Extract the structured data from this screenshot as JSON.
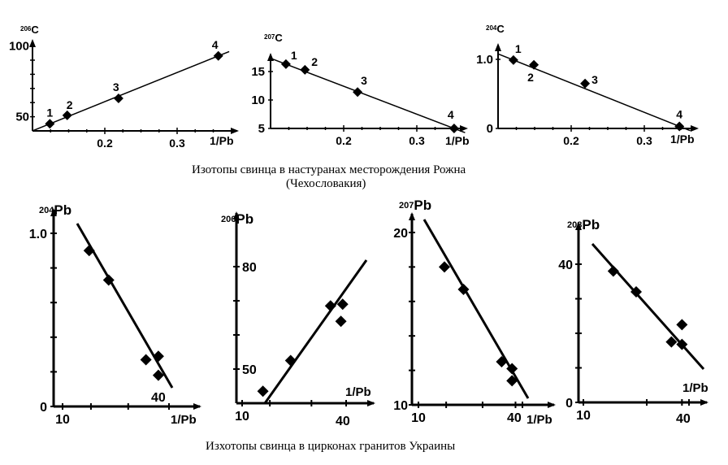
{
  "captions": {
    "top_line1": "Изотопы  свинца в настуранах месторождения Рожна",
    "top_line2": "(Чехословакия)",
    "bottom": "Изхотопы свинца в цирконах гранитов Украины"
  },
  "chart_data": [
    {
      "type": "line",
      "title": "",
      "ylabel": "206C",
      "xlabel": "1/Pb",
      "x_ticks": [
        0.2,
        0.3
      ],
      "y_ticks": [
        50,
        100
      ],
      "xlim": [
        0.1,
        0.38
      ],
      "ylim": [
        40,
        100
      ],
      "series": [
        {
          "name": "206C",
          "x": [
            0.124,
            0.148,
            0.219,
            0.357
          ],
          "y": [
            45,
            51,
            63,
            93
          ],
          "labels": [
            "1",
            "2",
            "3",
            "4"
          ]
        }
      ],
      "fit_line": true
    },
    {
      "type": "line",
      "title": "",
      "ylabel": "207C",
      "xlabel": "1/Pb",
      "x_ticks": [
        0.2,
        0.3
      ],
      "y_ticks": [
        5,
        10,
        15
      ],
      "xlim": [
        0.1,
        0.36
      ],
      "ylim": [
        5,
        18
      ],
      "series": [
        {
          "name": "207C",
          "x": [
            0.121,
            0.147,
            0.219,
            0.351
          ],
          "y": [
            16.3,
            15.3,
            11.4,
            5.0
          ],
          "labels": [
            "1",
            "2",
            "3",
            "4"
          ]
        }
      ],
      "fit_line": true
    },
    {
      "type": "line",
      "title": "",
      "ylabel": "204C",
      "xlabel": "1/Pb",
      "x_ticks": [
        0.2,
        0.3
      ],
      "y_ticks": [
        0,
        1.0
      ],
      "xlim": [
        0.1,
        0.36
      ],
      "ylim": [
        0,
        1.1
      ],
      "series": [
        {
          "name": "204C",
          "x": [
            0.121,
            0.149,
            0.219,
            0.348
          ],
          "y": [
            0.99,
            0.92,
            0.65,
            0.03
          ],
          "labels": [
            "1",
            "2",
            "3",
            "4"
          ]
        }
      ],
      "fit_line": true
    },
    {
      "type": "scatter",
      "title": "",
      "ylabel": "204Pb",
      "xlabel": "1/Pb",
      "x_ticks": [
        10,
        40
      ],
      "y_ticks": [
        0,
        1.0
      ],
      "xlim": [
        7,
        45
      ],
      "ylim": [
        0,
        1.2
      ],
      "series": [
        {
          "name": "204Pb",
          "x": [
            17.5,
            23,
            33.5,
            37,
            37
          ],
          "y": [
            0.9,
            0.73,
            0.27,
            0.29,
            0.18
          ]
        }
      ],
      "fit_line": true
    },
    {
      "type": "scatter",
      "title": "",
      "ylabel": "206Pb",
      "xlabel": "1/Pb",
      "x_ticks": [
        10,
        40
      ],
      "y_ticks": [
        50,
        80
      ],
      "xlim": [
        8,
        45
      ],
      "ylim": [
        40,
        90
      ],
      "series": [
        {
          "name": "206Pb",
          "x": [
            16,
            24,
            35.5,
            39,
            38.5
          ],
          "y": [
            43.5,
            52.5,
            68.5,
            69,
            64
          ]
        }
      ],
      "fit_line": true
    },
    {
      "type": "scatter",
      "title": "",
      "ylabel": "207Pb",
      "xlabel": "1/Pb",
      "x_ticks": [
        10,
        40
      ],
      "y_ticks": [
        10,
        20
      ],
      "xlim": [
        8,
        46
      ],
      "ylim": [
        10,
        21
      ],
      "series": [
        {
          "name": "207Pb",
          "x": [
            17.5,
            23,
            34,
            37,
            37
          ],
          "y": [
            18.0,
            16.7,
            12.5,
            12.1,
            11.4
          ]
        }
      ],
      "fit_line": true
    },
    {
      "type": "scatter",
      "title": "",
      "ylabel": "208Pb",
      "xlabel": "1/Pb",
      "x_ticks": [
        10,
        40
      ],
      "y_ticks": [
        0,
        40
      ],
      "xlim": [
        8,
        46
      ],
      "ylim": [
        0,
        48
      ],
      "series": [
        {
          "name": "208Pb",
          "x": [
            18.5,
            25,
            35,
            38,
            38
          ],
          "y": [
            38,
            32,
            17.5,
            22.5,
            16.8
          ]
        }
      ],
      "fit_line": true
    }
  ]
}
